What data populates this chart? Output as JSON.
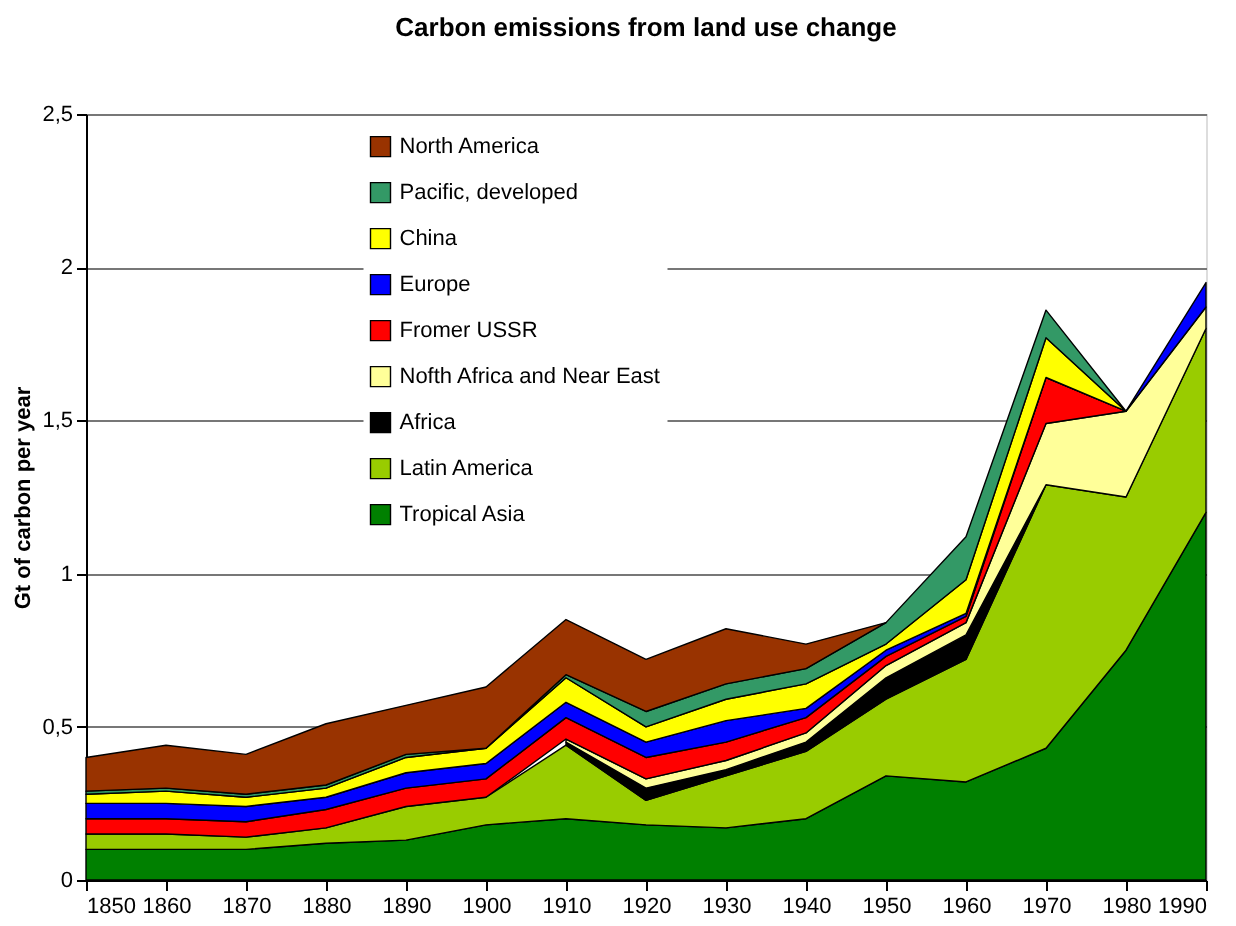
{
  "chart_data": {
    "type": "area",
    "stacked": true,
    "title": "Carbon emissions from land use change",
    "ylabel": "Gt of carbon per year",
    "x": [
      1850,
      1860,
      1870,
      1880,
      1890,
      1900,
      1910,
      1920,
      1930,
      1940,
      1950,
      1960,
      1970,
      1980,
      1990
    ],
    "xlim": [
      1850,
      1990
    ],
    "xticks": [
      1850,
      1860,
      1870,
      1880,
      1890,
      1900,
      1910,
      1920,
      1930,
      1940,
      1950,
      1960,
      1970,
      1980,
      1990
    ],
    "ylim": [
      0,
      2.5
    ],
    "yticks": [
      0,
      {
        "value": 0.5,
        "label": "0,5"
      },
      1,
      {
        "value": 1.5,
        "label": "1,5"
      },
      2,
      {
        "value": 2.5,
        "label": "2,5"
      }
    ],
    "grid": "y",
    "legend": "top left",
    "series": [
      {
        "name": "Tropical Asia",
        "color": "#008000",
        "values": [
          0.1,
          0.1,
          0.1,
          0.12,
          0.13,
          0.18,
          0.2,
          0.18,
          0.17,
          0.2,
          0.34,
          0.32,
          0.43,
          0.75,
          1.2
        ]
      },
      {
        "name": "Latin America",
        "color": "#99cc00",
        "values": [
          0.05,
          0.05,
          0.04,
          0.05,
          0.11,
          0.09,
          0.24,
          0.08,
          0.17,
          0.22,
          0.25,
          0.4,
          0.86,
          0.5,
          0.6
        ]
      },
      {
        "name": "Africa",
        "color": "#000000",
        "values": [
          null,
          null,
          null,
          null,
          null,
          null,
          0.01,
          0.04,
          0.02,
          0.03,
          0.07,
          0.08,
          0,
          null,
          null
        ]
      },
      {
        "name": "Nofth Africa and Near East",
        "color": "#ffff99",
        "values": [
          null,
          null,
          null,
          null,
          null,
          null,
          0.01,
          0.03,
          0.03,
          0.03,
          0.04,
          0.04,
          0.2,
          0.28,
          0.07
        ]
      },
      {
        "name": "Fromer USSR",
        "color": "#ff0000",
        "values": [
          0.05,
          0.05,
          0.05,
          0.06,
          0.06,
          0.06,
          0.07,
          0.07,
          0.06,
          0.05,
          0.03,
          0.02,
          0.15,
          0,
          null
        ]
      },
      {
        "name": "Europe",
        "color": "#0000ff",
        "values": [
          0.05,
          0.05,
          0.05,
          0.04,
          0.05,
          0.05,
          0.05,
          0.05,
          0.07,
          0.03,
          0.02,
          0.01,
          0,
          0,
          0.08
        ]
      },
      {
        "name": "China",
        "color": "#ffff00",
        "values": [
          0.03,
          0.04,
          0.03,
          0.03,
          0.05,
          0.05,
          0.08,
          0.05,
          0.07,
          0.08,
          0.02,
          0.11,
          0.13,
          0,
          null
        ]
      },
      {
        "name": "Pacific, developed",
        "color": "#339966",
        "values": [
          0.01,
          0.01,
          0.01,
          0.01,
          0.01,
          0,
          0.01,
          0.05,
          0.05,
          0.05,
          0.07,
          0.14,
          0.09,
          0,
          null
        ]
      },
      {
        "name": "North America",
        "color": "#993300",
        "values": [
          0.11,
          0.14,
          0.13,
          0.2,
          0.16,
          0.2,
          0.18,
          0.17,
          0.18,
          0.08,
          0,
          null,
          null,
          null,
          null
        ]
      }
    ]
  }
}
